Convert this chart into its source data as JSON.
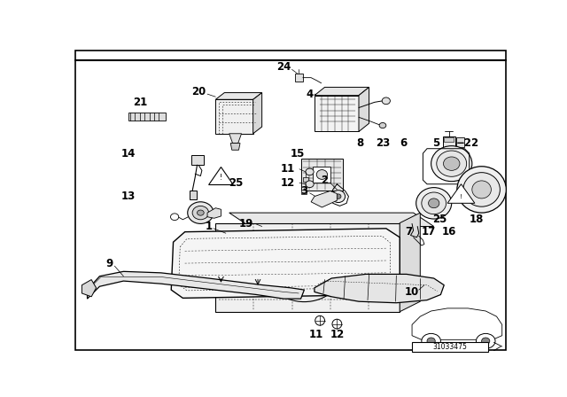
{
  "bg_color": "#ffffff",
  "figsize": [
    6.4,
    4.48
  ],
  "dpi": 100,
  "lw_main": 0.9,
  "lw_detail": 0.5,
  "fs_label": 8.5
}
